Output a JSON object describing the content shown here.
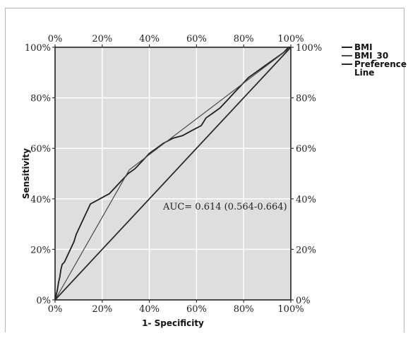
{
  "chart_data": {
    "type": "line",
    "xlabel": "1- Specificity",
    "ylabel": "Sensitivity",
    "xlim": [
      0,
      1
    ],
    "ylim": [
      0,
      1
    ],
    "x_ticks": [
      "0%",
      "20%",
      "40%",
      "60%",
      "80%",
      "100%"
    ],
    "y_ticks": [
      "0%",
      "20%",
      "40%",
      "60%",
      "80%",
      "100%"
    ],
    "grid": true,
    "legend_position": "top-right",
    "annotation": "AUC= 0.614 (0.564-0.664)",
    "colors": {
      "plot_bg": "#dedede",
      "grid": "#ffffff",
      "line": "#2a2a2a"
    },
    "series": [
      {
        "name": "BMI",
        "points": [
          [
            0,
            0
          ],
          [
            0.005,
            0.02
          ],
          [
            0.01,
            0.04
          ],
          [
            0.015,
            0.07
          ],
          [
            0.02,
            0.09
          ],
          [
            0.025,
            0.12
          ],
          [
            0.03,
            0.14
          ],
          [
            0.04,
            0.15
          ],
          [
            0.05,
            0.17
          ],
          [
            0.06,
            0.19
          ],
          [
            0.07,
            0.21
          ],
          [
            0.08,
            0.23
          ],
          [
            0.09,
            0.26
          ],
          [
            0.1,
            0.28
          ],
          [
            0.11,
            0.3
          ],
          [
            0.12,
            0.32
          ],
          [
            0.13,
            0.34
          ],
          [
            0.14,
            0.36
          ],
          [
            0.15,
            0.38
          ],
          [
            0.17,
            0.39
          ],
          [
            0.19,
            0.4
          ],
          [
            0.21,
            0.41
          ],
          [
            0.23,
            0.42
          ],
          [
            0.25,
            0.44
          ],
          [
            0.27,
            0.46
          ],
          [
            0.29,
            0.48
          ],
          [
            0.31,
            0.5
          ],
          [
            0.34,
            0.52
          ],
          [
            0.37,
            0.55
          ],
          [
            0.4,
            0.58
          ],
          [
            0.43,
            0.6
          ],
          [
            0.46,
            0.62
          ],
          [
            0.5,
            0.64
          ],
          [
            0.54,
            0.65
          ],
          [
            0.58,
            0.67
          ],
          [
            0.62,
            0.69
          ],
          [
            0.64,
            0.72
          ],
          [
            0.67,
            0.74
          ],
          [
            0.7,
            0.76
          ],
          [
            0.73,
            0.79
          ],
          [
            0.76,
            0.82
          ],
          [
            0.79,
            0.85
          ],
          [
            0.82,
            0.88
          ],
          [
            0.85,
            0.9
          ],
          [
            0.88,
            0.92
          ],
          [
            0.91,
            0.94
          ],
          [
            0.94,
            0.96
          ],
          [
            0.97,
            0.98
          ],
          [
            0.99,
            1.0
          ],
          [
            1.0,
            1.0
          ]
        ]
      },
      {
        "name": "BMI_30",
        "points": [
          [
            0,
            0
          ],
          [
            0.315,
            0.515
          ],
          [
            1.0,
            1.0
          ]
        ]
      },
      {
        "name": "Preference Line",
        "points": [
          [
            0,
            0
          ],
          [
            1.0,
            1.0
          ]
        ]
      }
    ]
  },
  "legend": {
    "items": [
      {
        "label_lines": [
          "BMI"
        ]
      },
      {
        "label_lines": [
          "BMI_30"
        ]
      },
      {
        "label_lines": [
          "Preference",
          "Line"
        ]
      }
    ]
  }
}
